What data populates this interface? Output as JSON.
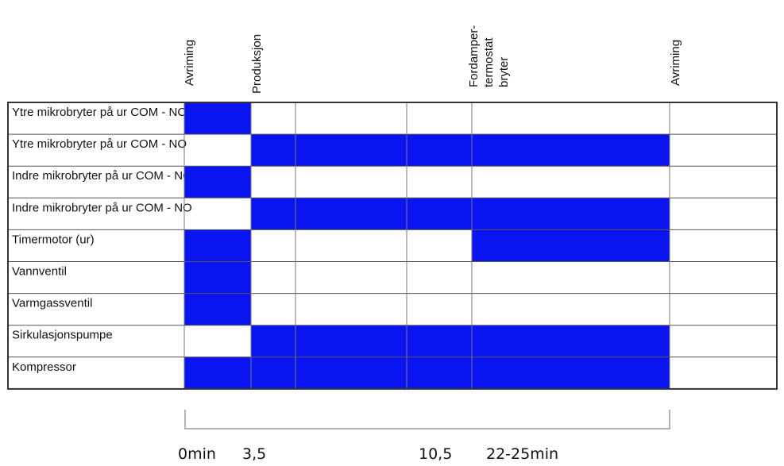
{
  "header": {
    "columns": [
      {
        "lines": [
          "Avriming"
        ]
      },
      {
        "lines": [
          "Produksjon"
        ]
      },
      {
        "lines": [
          "Fordamper-",
          "termostat",
          "bryter"
        ]
      },
      {
        "lines": [
          "Avriming"
        ]
      }
    ]
  },
  "rows": [
    {
      "label": "Ytre mikrobryter på ur  COM - NC",
      "active": [
        true,
        false,
        false,
        false,
        false,
        false
      ]
    },
    {
      "label": "Ytre mikrobryter på ur  COM - NO",
      "active": [
        false,
        true,
        true,
        true,
        true,
        false
      ]
    },
    {
      "label": "Indre mikrobryter på ur  COM - NC",
      "active": [
        true,
        false,
        false,
        false,
        false,
        false
      ]
    },
    {
      "label": "Indre mikrobryter på ur  COM - NO",
      "active": [
        false,
        true,
        true,
        true,
        true,
        false
      ]
    },
    {
      "label": "Timermotor (ur)",
      "active": [
        true,
        false,
        false,
        false,
        true,
        false
      ]
    },
    {
      "label": "Vannventil",
      "active": [
        true,
        false,
        false,
        false,
        false,
        false
      ]
    },
    {
      "label": "Varmgassventil",
      "active": [
        true,
        false,
        false,
        false,
        false,
        false
      ]
    },
    {
      "label": "Sirkulasjonspumpe",
      "active": [
        false,
        true,
        true,
        true,
        true,
        false
      ]
    },
    {
      "label": "Kompressor",
      "active": [
        true,
        true,
        true,
        true,
        true,
        false
      ]
    }
  ],
  "timeline": {
    "labels": [
      "0min",
      "3,5",
      "10,5",
      "22-25min"
    ]
  }
}
